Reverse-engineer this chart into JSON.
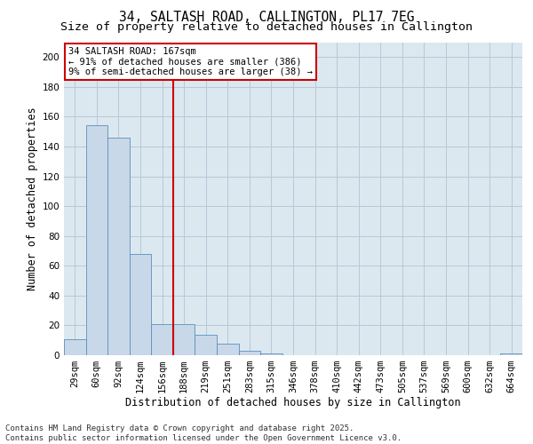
{
  "title_line1": "34, SALTASH ROAD, CALLINGTON, PL17 7EG",
  "title_line2": "Size of property relative to detached houses in Callington",
  "xlabel": "Distribution of detached houses by size in Callington",
  "ylabel": "Number of detached properties",
  "categories": [
    "29sqm",
    "60sqm",
    "92sqm",
    "124sqm",
    "156sqm",
    "188sqm",
    "219sqm",
    "251sqm",
    "283sqm",
    "315sqm",
    "346sqm",
    "378sqm",
    "410sqm",
    "442sqm",
    "473sqm",
    "505sqm",
    "537sqm",
    "569sqm",
    "600sqm",
    "632sqm",
    "664sqm"
  ],
  "values": [
    11,
    154,
    146,
    68,
    21,
    21,
    14,
    8,
    3,
    1,
    0,
    0,
    0,
    0,
    0,
    0,
    0,
    0,
    0,
    0,
    1
  ],
  "bar_color": "#c8d8e8",
  "bar_edge_color": "#5a90be",
  "vline_x_index": 4.5,
  "vline_color": "#cc0000",
  "annotation_line1": "34 SALTASH ROAD: 167sqm",
  "annotation_line2": "← 91% of detached houses are smaller (386)",
  "annotation_line3": "9% of semi-detached houses are larger (38) →",
  "annotation_box_facecolor": "#ffffff",
  "annotation_box_edgecolor": "#cc0000",
  "ylim": [
    0,
    210
  ],
  "yticks": [
    0,
    20,
    40,
    60,
    80,
    100,
    120,
    140,
    160,
    180,
    200
  ],
  "grid_color": "#b8c8d8",
  "background_color": "#dce8f0",
  "footer_text": "Contains HM Land Registry data © Crown copyright and database right 2025.\nContains public sector information licensed under the Open Government Licence v3.0.",
  "title_fontsize": 10.5,
  "subtitle_fontsize": 9.5,
  "axis_label_fontsize": 8.5,
  "tick_fontsize": 7.5,
  "annotation_fontsize": 7.5,
  "footer_fontsize": 6.5
}
